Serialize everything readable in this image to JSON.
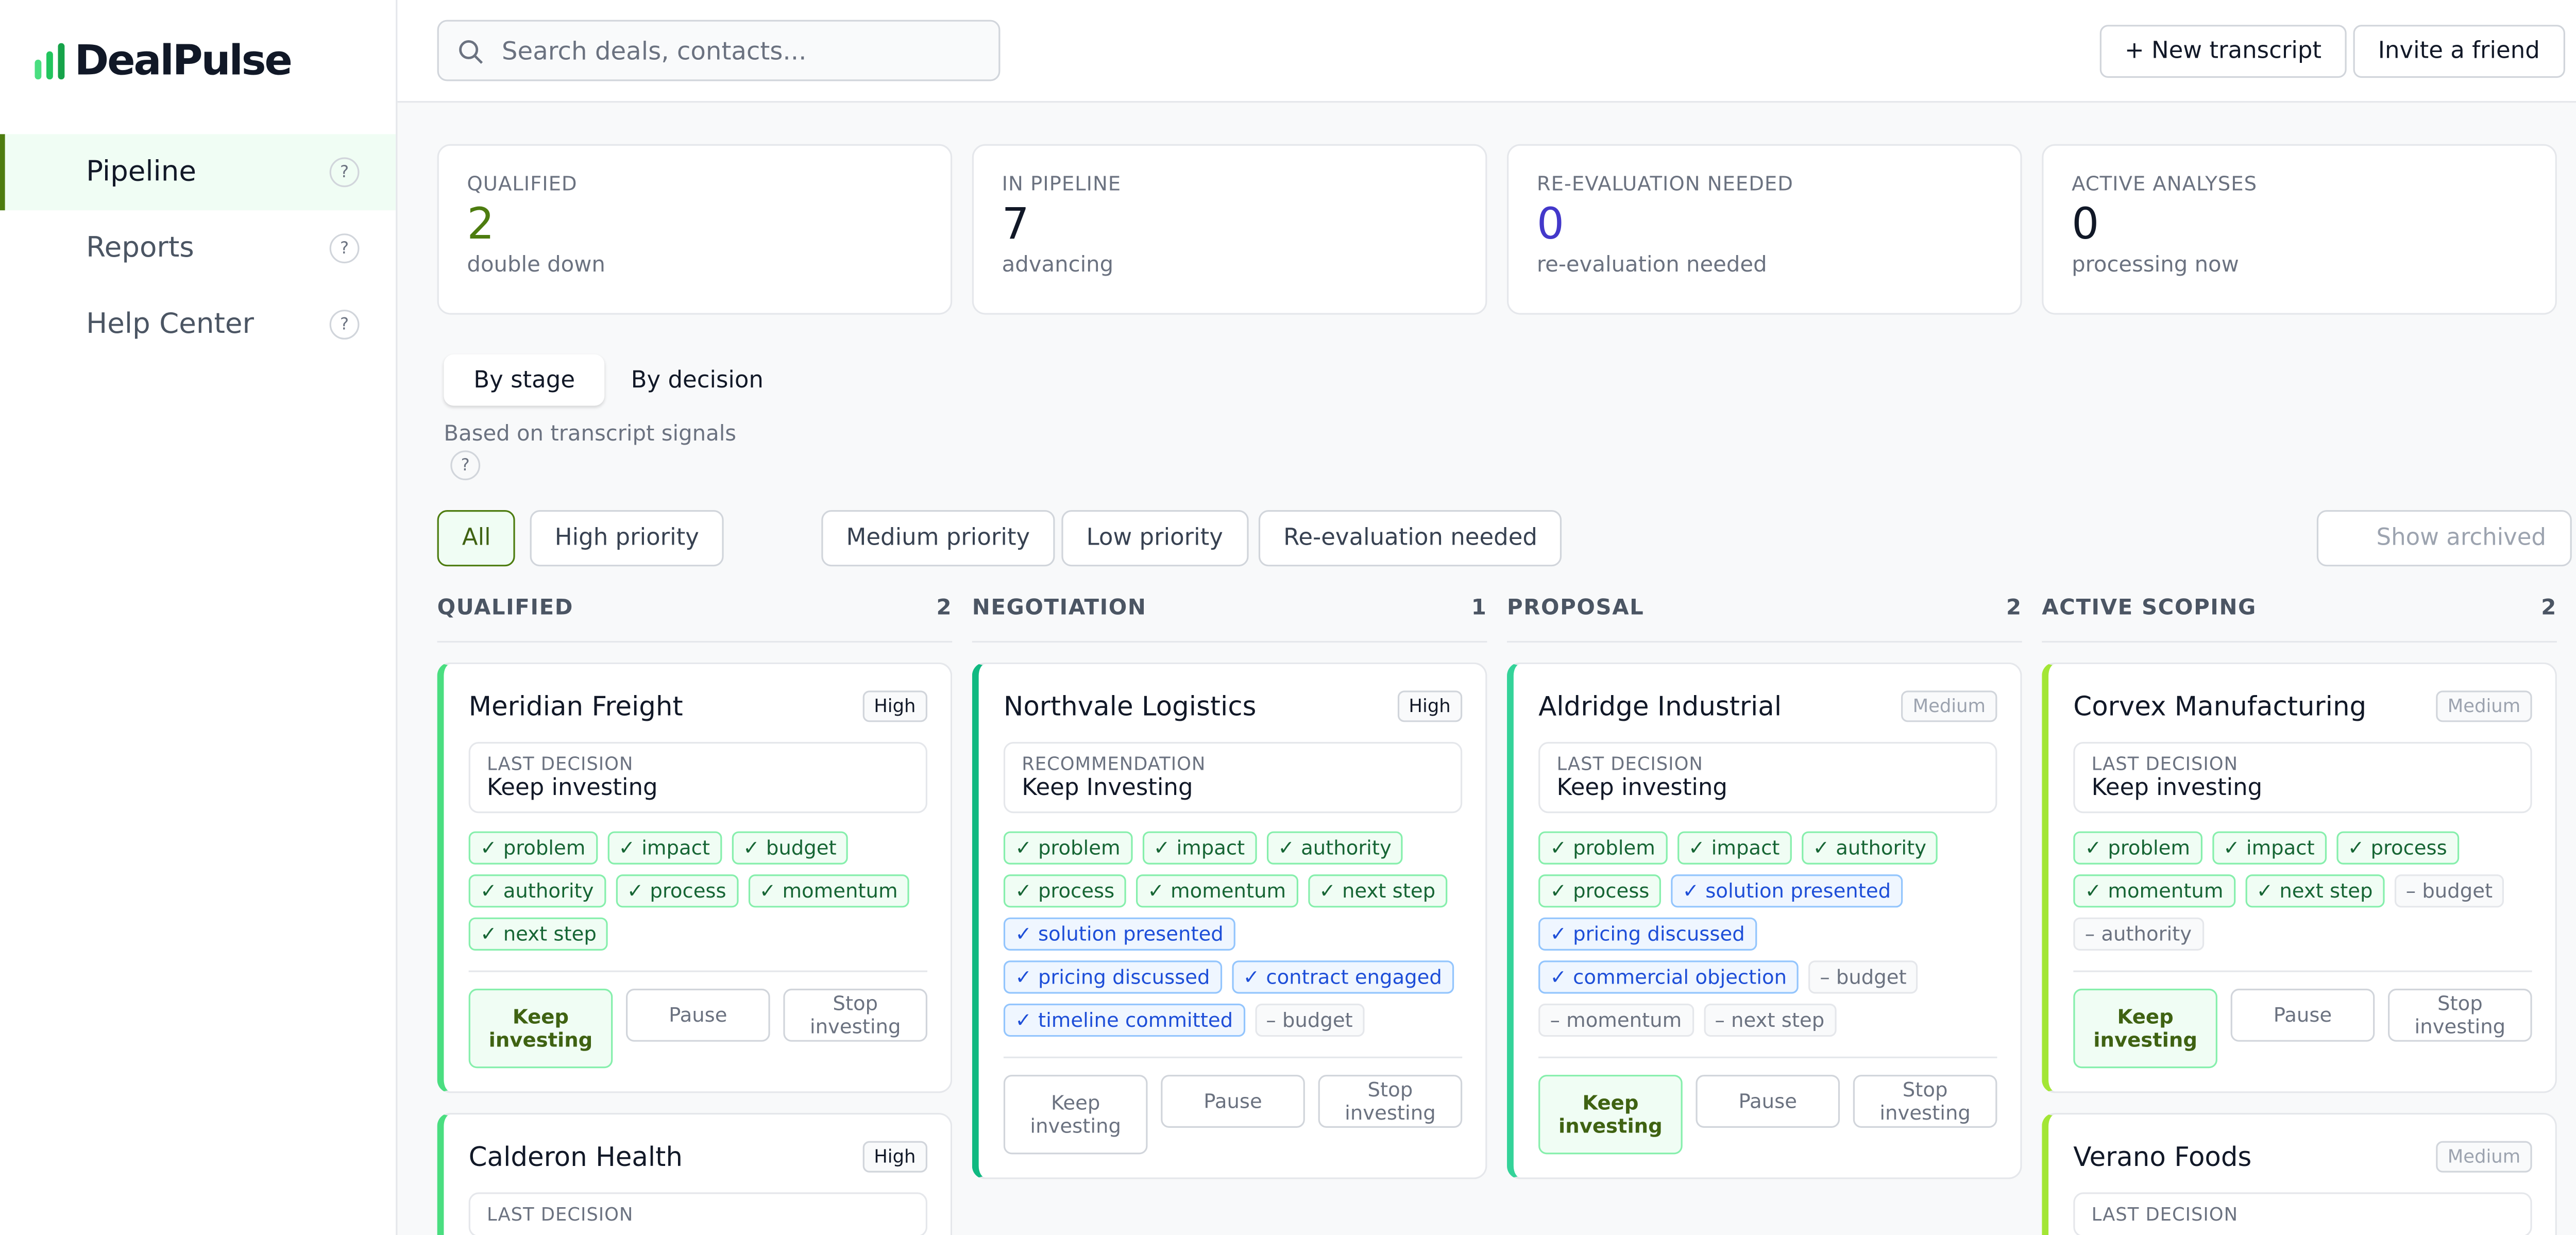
{
  "brand": "DealPulse",
  "nav": [
    {
      "label": "Pipeline",
      "help": "?"
    },
    {
      "label": "Reports",
      "help": "?"
    },
    {
      "label": "Help Center",
      "help": "?"
    }
  ],
  "search": "Search deals, contacts...",
  "header_buttons": [
    "+ New transcript",
    "Invite a friend"
  ],
  "stats": [
    {
      "label": "QUALIFIED",
      "value": "2",
      "note": "double down",
      "color": "#4d7c0f"
    },
    {
      "label": "IN PIPELINE",
      "value": "7",
      "note": "advancing",
      "color": "#111827"
    },
    {
      "label": "RE-EVALUATION NEEDED",
      "value": "0",
      "note": "re-evaluation needed",
      "color": "#4338ca"
    },
    {
      "label": "ACTIVE ANALYSES",
      "value": "0",
      "note": "processing now",
      "color": "#111827"
    }
  ],
  "tabs": {
    "items": [
      "By stage",
      "By decision"
    ],
    "note": "Based on transcript signals",
    "help": "?"
  },
  "filters": [
    "All",
    "High priority",
    "Medium priority",
    "Low priority",
    "Re-evaluation needed"
  ],
  "show_archived": "Show archived",
  "actions": [
    "Keep investing",
    "Pause",
    "Stop investing"
  ],
  "columns": [
    {
      "name": "QUALIFIED",
      "count": "2",
      "color": "#4ade80",
      "cards": [
        {
          "name": "Meridian Freight",
          "priority": "High",
          "decision_label": "LAST DECISION",
          "decision": "Keep investing",
          "selected": 0,
          "signals": [
            {
              "text": "✓ problem",
              "tone": "green"
            },
            {
              "text": "✓ impact",
              "tone": "green"
            },
            {
              "text": "✓ budget",
              "tone": "green"
            },
            {
              "text": "✓ authority",
              "tone": "green"
            },
            {
              "text": "✓ process",
              "tone": "green"
            },
            {
              "text": "✓ momentum",
              "tone": "green"
            },
            {
              "text": "✓ next step",
              "tone": "green"
            }
          ]
        },
        {
          "name": "Calderon Health",
          "priority": "High",
          "decision_label": "LAST DECISION"
        }
      ]
    },
    {
      "name": "NEGOTIATION",
      "count": "1",
      "color": "#10b981",
      "cards": [
        {
          "name": "Northvale Logistics",
          "priority": "High",
          "decision_label": "RECOMMENDATION",
          "decision": "Keep Investing",
          "signals": [
            {
              "text": "✓ problem",
              "tone": "green"
            },
            {
              "text": "✓ impact",
              "tone": "green"
            },
            {
              "text": "✓ authority",
              "tone": "green"
            },
            {
              "text": "✓ process",
              "tone": "green"
            },
            {
              "text": "✓ momentum",
              "tone": "green"
            },
            {
              "text": "✓ next step",
              "tone": "green"
            },
            {
              "text": "✓ solution presented",
              "tone": "blue"
            },
            {
              "text": "✓ pricing discussed",
              "tone": "blue"
            },
            {
              "text": "✓ contract engaged",
              "tone": "blue"
            },
            {
              "text": "✓ timeline committed",
              "tone": "blue"
            },
            {
              "text": "– budget",
              "tone": "gray"
            }
          ]
        }
      ]
    },
    {
      "name": "PROPOSAL",
      "count": "2",
      "color": "#34d399",
      "cards": [
        {
          "name": "Aldridge Industrial",
          "priority": "Medium",
          "decision_label": "LAST DECISION",
          "decision": "Keep investing",
          "selected": 0,
          "signals": [
            {
              "text": "✓ problem",
              "tone": "green"
            },
            {
              "text": "✓ impact",
              "tone": "green"
            },
            {
              "text": "✓ authority",
              "tone": "green"
            },
            {
              "text": "✓ process",
              "tone": "green"
            },
            {
              "text": "✓ solution presented",
              "tone": "blue"
            },
            {
              "text": "✓ pricing discussed",
              "tone": "blue"
            },
            {
              "text": "✓ commercial objection",
              "tone": "blue"
            },
            {
              "text": "– budget",
              "tone": "gray"
            },
            {
              "text": "– momentum",
              "tone": "gray"
            },
            {
              "text": "– next step",
              "tone": "gray"
            }
          ]
        }
      ]
    },
    {
      "name": "ACTIVE SCOPING",
      "count": "2",
      "color": "#a3e635",
      "cards": [
        {
          "name": "Corvex Manufacturing",
          "priority": "Medium",
          "decision_label": "LAST DECISION",
          "decision": "Keep investing",
          "selected": 0,
          "signals": [
            {
              "text": "✓ problem",
              "tone": "green"
            },
            {
              "text": "✓ impact",
              "tone": "green"
            },
            {
              "text": "✓ process",
              "tone": "green"
            },
            {
              "text": "✓ momentum",
              "tone": "green"
            },
            {
              "text": "✓ next step",
              "tone": "green"
            },
            {
              "text": "– budget",
              "tone": "gray"
            },
            {
              "text": "– authority",
              "tone": "gray"
            }
          ]
        },
        {
          "name": "Verano Foods",
          "priority": "Medium",
          "decision_label": "LAST DECISION"
        }
      ]
    }
  ]
}
